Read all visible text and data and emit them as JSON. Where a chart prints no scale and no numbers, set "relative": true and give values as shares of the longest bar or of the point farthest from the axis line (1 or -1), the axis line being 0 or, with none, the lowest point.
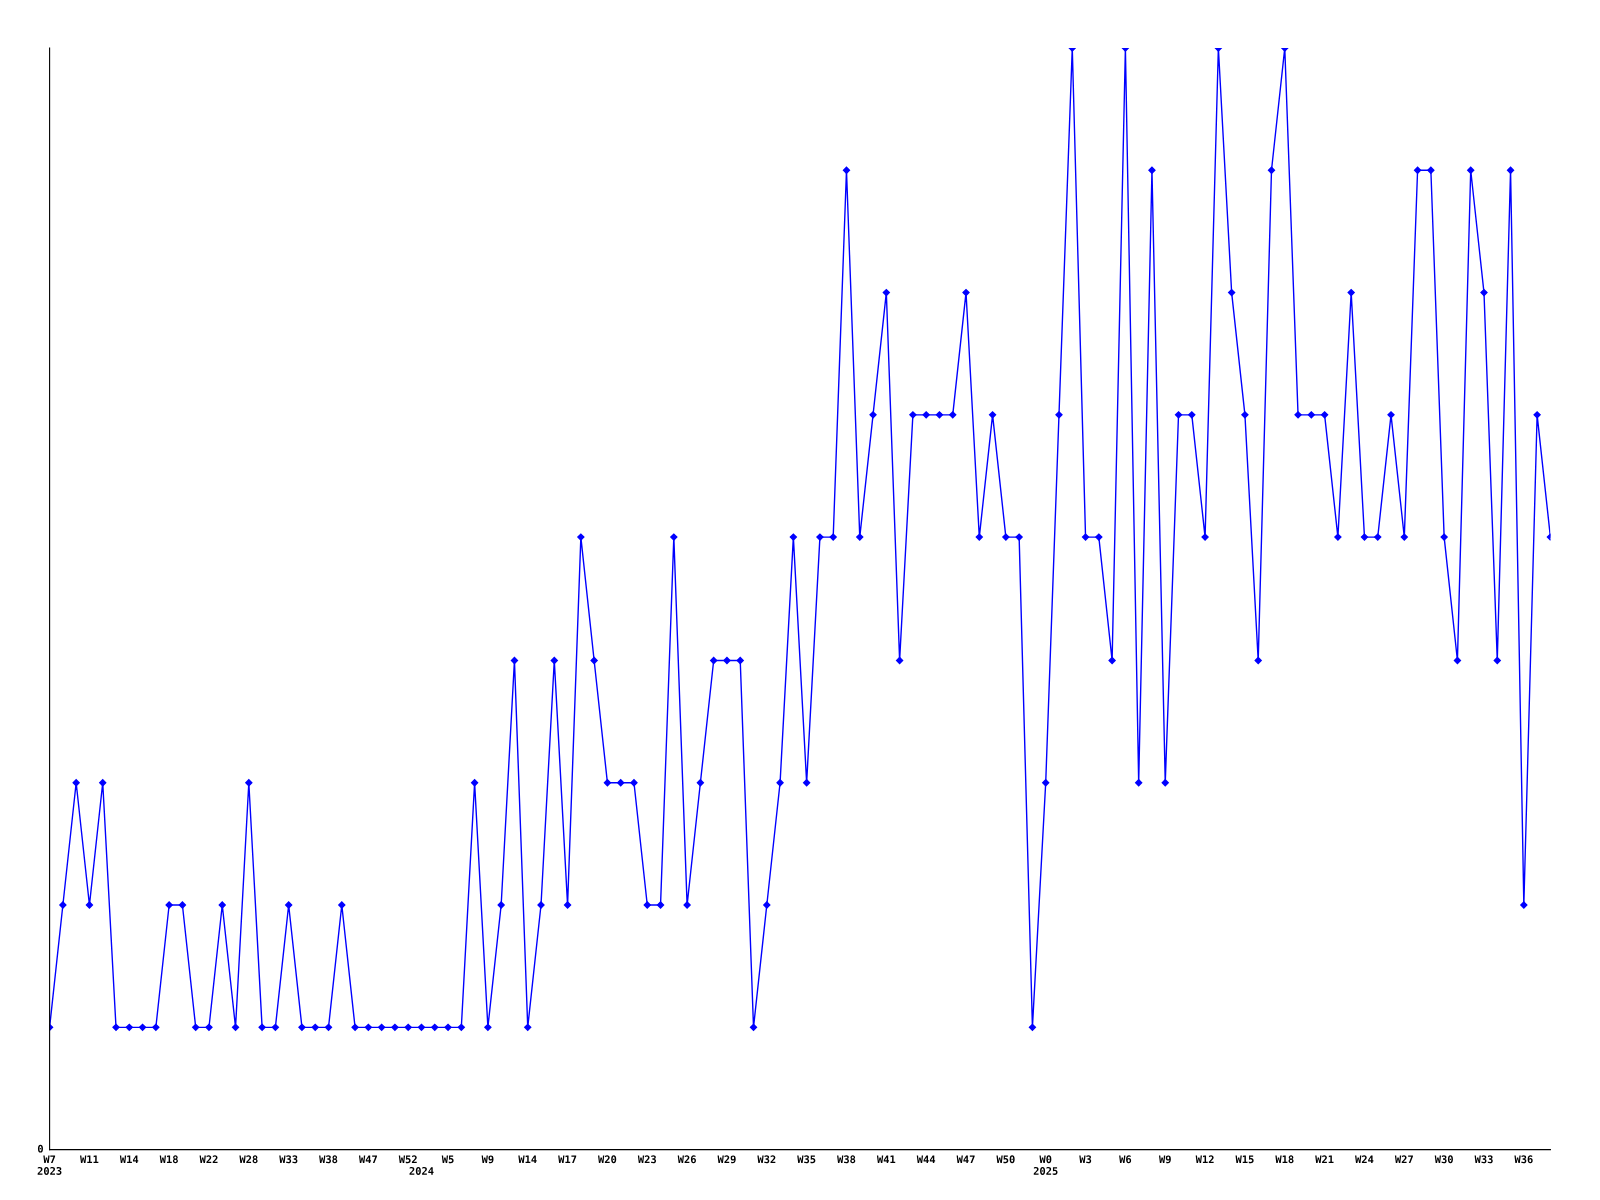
{
  "chart_data": {
    "type": "line",
    "relative": true,
    "marker": "diamond",
    "line_style": "solid",
    "grid": false,
    "legend": false,
    "categories": [
      "W7\n2023",
      null,
      null,
      "W11",
      null,
      null,
      "W14",
      null,
      null,
      "W18",
      null,
      null,
      "W22",
      null,
      null,
      "W28",
      null,
      null,
      "W33",
      null,
      null,
      "W38",
      null,
      null,
      "W47",
      null,
      null,
      "W52",
      "\n2024",
      null,
      "W5",
      null,
      null,
      "W9",
      null,
      null,
      "W14",
      null,
      null,
      "W17",
      null,
      null,
      "W20",
      null,
      null,
      "W23",
      null,
      null,
      "W26",
      null,
      null,
      "W29",
      null,
      null,
      "W32",
      null,
      null,
      "W35",
      null,
      null,
      "W38",
      null,
      null,
      "W41",
      null,
      null,
      "W44",
      null,
      null,
      "W47",
      null,
      null,
      "W50",
      null,
      null,
      "W0\n2025",
      null,
      null,
      "W3",
      null,
      null,
      "W6",
      null,
      null,
      "W9",
      null,
      null,
      "W12",
      null,
      null,
      "W15",
      null,
      null,
      "W18",
      null,
      null,
      "W21",
      null,
      null,
      "W24",
      null,
      null,
      "W27",
      null,
      null,
      "W30",
      null,
      null,
      "W33",
      null,
      null,
      "W36",
      null,
      null
    ],
    "series": [
      {
        "color": "#0000ff",
        "values": [
          0.111,
          0.222,
          0.333,
          0.222,
          0.333,
          0.111,
          0.111,
          0.111,
          0.111,
          0.222,
          0.222,
          0.111,
          0.111,
          0.222,
          0.111,
          0.333,
          0.111,
          0.111,
          0.222,
          0.111,
          0.111,
          0.111,
          0.222,
          0.111,
          0.111,
          0.111,
          0.111,
          0.111,
          0.111,
          0.111,
          0.111,
          0.111,
          0.333,
          0.111,
          0.222,
          0.444,
          0.111,
          0.222,
          0.444,
          0.222,
          0.556,
          0.444,
          0.333,
          0.333,
          0.333,
          0.222,
          0.222,
          0.556,
          0.222,
          0.333,
          0.444,
          0.444,
          0.444,
          0.111,
          0.222,
          0.333,
          0.556,
          0.333,
          0.556,
          0.556,
          0.889,
          0.556,
          0.667,
          0.778,
          0.444,
          0.667,
          0.667,
          0.667,
          0.667,
          0.778,
          0.556,
          0.667,
          0.556,
          0.556,
          0.111,
          0.333,
          0.667,
          1,
          0.556,
          0.556,
          0.444,
          1,
          0.333,
          0.889,
          0.333,
          0.667,
          0.667,
          0.556,
          1,
          0.778,
          0.667,
          0.444,
          0.889,
          1,
          0.667,
          0.667,
          0.667,
          0.556,
          0.778,
          0.556,
          0.556,
          0.667,
          0.556,
          0.889,
          0.889,
          0.556,
          0.444,
          0.889,
          0.778,
          0.444,
          0.889,
          0.222,
          0.667,
          0.556
        ]
      }
    ],
    "annotations": [
      "0"
    ]
  }
}
